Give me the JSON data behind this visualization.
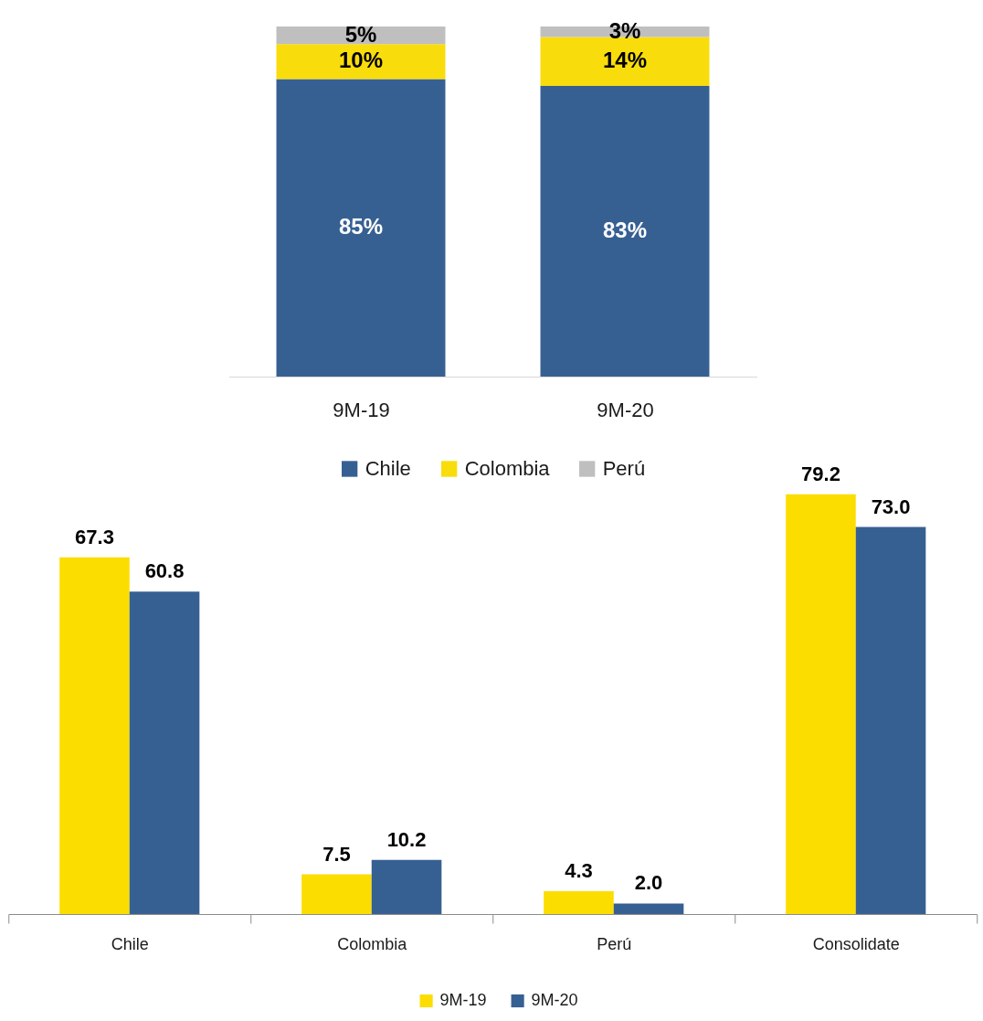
{
  "chart_data": [
    {
      "type": "bar",
      "stacked": true,
      "categories": [
        "9M-19",
        "9M-20"
      ],
      "series": [
        {
          "name": "Chile",
          "color": "#376092",
          "values": [
            85,
            83
          ],
          "value_labels": [
            "85%",
            "83%"
          ]
        },
        {
          "name": "Colombia",
          "color": "#f9dc0c",
          "values": [
            10,
            14
          ],
          "value_labels": [
            "10%",
            "14%"
          ]
        },
        {
          "name": "Perú",
          "color": "#bfbfbf",
          "values": [
            5,
            3
          ],
          "value_labels": [
            "5%",
            "3%"
          ]
        }
      ],
      "legend": "bottom"
    },
    {
      "type": "bar",
      "categories": [
        "Chile",
        "Colombia",
        "Perú",
        "Consolidate"
      ],
      "series": [
        {
          "name": "9M-19",
          "color": "#fcdd00",
          "values": [
            67.3,
            7.5,
            4.3,
            79.2
          ],
          "value_labels": [
            "67.3",
            "7.5",
            "4.3",
            "79.2"
          ]
        },
        {
          "name": "9M-20",
          "color": "#376092",
          "values": [
            60.8,
            10.2,
            2.0,
            73.0
          ],
          "value_labels": [
            "60.8",
            "10.2",
            "2.0",
            "73.0"
          ]
        }
      ],
      "legend": "bottom"
    }
  ]
}
